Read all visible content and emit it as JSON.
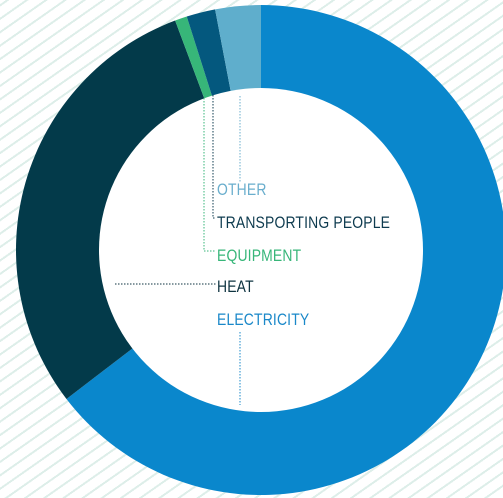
{
  "chart_data": {
    "type": "donut",
    "title": "",
    "legend_placement": "center",
    "categories": [
      "ELECTRICITY",
      "HEAT",
      "EQUIPMENT",
      "TRANSPORTING PEOPLE",
      "OTHER"
    ],
    "values": [
      64.6,
      29.7,
      0.8,
      1.9,
      3.0
    ],
    "colors": [
      "#0a87cc",
      "#033a4a",
      "#37b679",
      "#04587e",
      "#5faecc"
    ],
    "label_colors": [
      "#1a88c9",
      "#0e3340",
      "#37b679",
      "#0e3b4f",
      "#6aaecd"
    ]
  }
}
